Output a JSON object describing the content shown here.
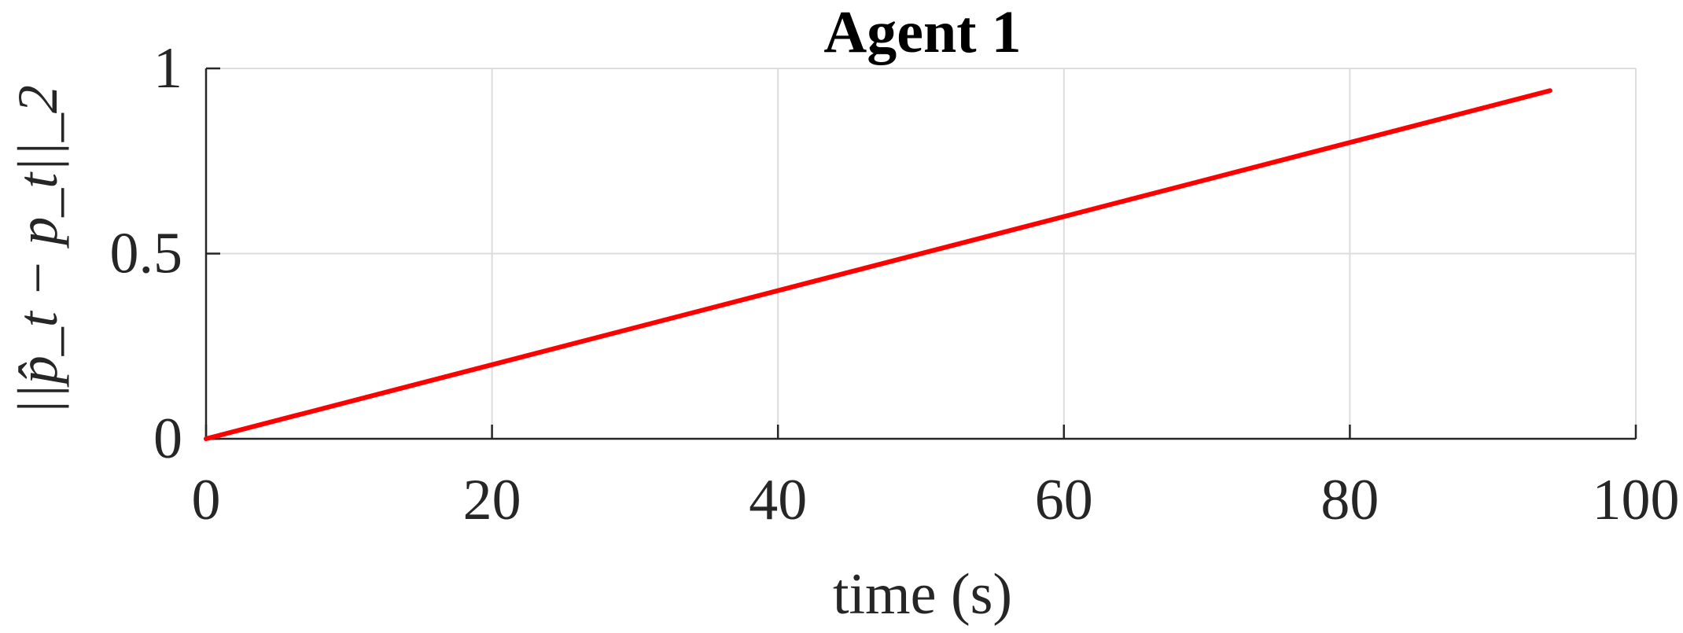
{
  "chart_data": {
    "type": "line",
    "title": "Agent 1",
    "xlabel": "time (s)",
    "ylabel": "||p̂_t − p_t||_2",
    "xlim": [
      0,
      100
    ],
    "ylim": [
      0,
      1
    ],
    "xticks": [
      0,
      20,
      40,
      60,
      80,
      100
    ],
    "yticks": [
      0,
      0.5,
      1
    ],
    "xtick_labels": [
      "0",
      "20",
      "40",
      "60",
      "80",
      "100"
    ],
    "ytick_labels": [
      "0",
      "0.5",
      "1"
    ],
    "grid": true,
    "series": [
      {
        "color": "#ff0000",
        "x": [
          0,
          94
        ],
        "y": [
          0,
          0.94
        ]
      }
    ]
  }
}
